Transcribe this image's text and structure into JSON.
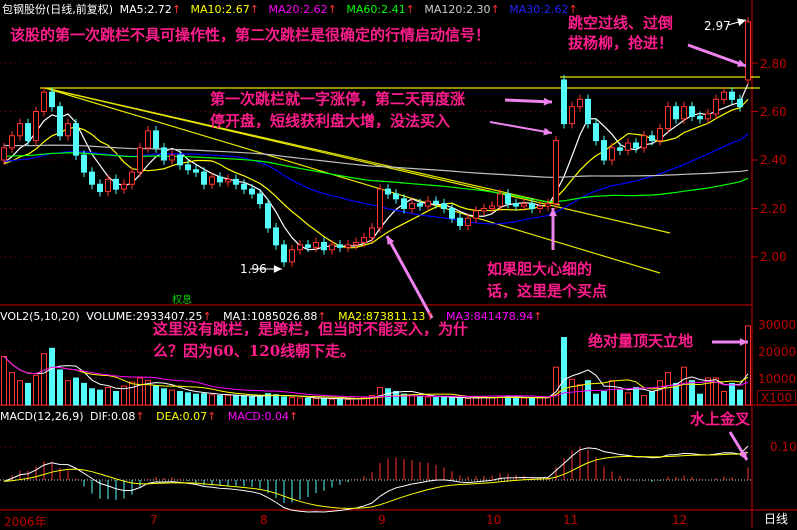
{
  "header": {
    "title": "包钢股份(日线,前复权)",
    "ma5": "MA5:2.72",
    "ma10": "MA10:2.67",
    "ma20": "MA20:2.62",
    "ma60": "MA60:2.41",
    "ma120": "MA120:2.30",
    "ma30": "MA30:2.62"
  },
  "volume_header": {
    "title": "VOL2(5,10,20)",
    "volume": "VOLUME:2933407.25",
    "ma1": "MA1:1085026.88",
    "ma2": "MA2:873811.13",
    "ma3": "MA3:841478.94"
  },
  "macd_header": {
    "title": "MACD(12,26,9)",
    "dif": "DIF:0.08",
    "dea": "DEA:0.07",
    "macd": "MACD:0.04"
  },
  "annotations": {
    "top": "该股的第一次跳栏不具可操作性，第二次跳栏是很确定的行情启动信号！",
    "first_gap_1": "第一次跳栏就一字涨停，第二天再度涨",
    "first_gap_2": "停开盘，短线获利盘大增，没法买入",
    "jump_1": "跳空过线、过倒",
    "jump_2": "拔杨柳，抢进！",
    "buy_1": "如果胆大心细的",
    "buy_2": "话，这里是个买点",
    "cross_1": "这里没有跳栏，是跨栏，但当时不能买入，为什",
    "cross_2": "么？因为60、120线朝下走。",
    "volume_note": "绝对量顶天立地",
    "macd_note": "水上金叉",
    "high_label": "2.97",
    "low_label": "1.96",
    "ex_rights": "权息"
  },
  "time_axis": {
    "labels": [
      "2006年",
      "7",
      "8",
      "9",
      "10",
      "11",
      "12"
    ],
    "period": "日线"
  },
  "colors": {
    "up": "#ff3232",
    "down": "#54fcfc",
    "ma5": "#ffffff",
    "ma10": "#ffff00",
    "ma20": "#ff00ff",
    "ma30": "#0000ff",
    "ma60": "#00ff00",
    "ma120": "#c0c0c0",
    "note": "#ff1c8c",
    "arrow": "#ee82ee",
    "axis": "#c00000"
  },
  "chart_data": {
    "type": "candlestick",
    "price_axis": {
      "ticks": [
        "2.80",
        "2.60",
        "2.40",
        "2.20",
        "2.00"
      ],
      "range": [
        1.9,
        3.0
      ]
    },
    "volume_axis": {
      "ticks": [
        "30000",
        "20000",
        "10000"
      ],
      "unit": "X100",
      "range": [
        0,
        32000
      ]
    },
    "macd_axis": {
      "ticks": [
        "0.10"
      ]
    },
    "open": [
      2.4,
      2.45,
      2.5,
      2.55,
      2.48,
      2.6,
      2.68,
      2.62,
      2.5,
      2.55,
      2.42,
      2.35,
      2.3,
      2.27,
      2.32,
      2.28,
      2.3,
      2.35,
      2.45,
      2.52,
      2.45,
      2.4,
      2.42,
      2.38,
      2.36,
      2.35,
      2.3,
      2.33,
      2.31,
      2.32,
      2.3,
      2.28,
      2.26,
      2.22,
      2.12,
      2.05,
      1.98,
      2.03,
      2.05,
      2.04,
      2.06,
      2.03,
      2.05,
      2.04,
      2.05,
      2.06,
      2.08,
      2.12,
      2.28,
      2.26,
      2.24,
      2.2,
      2.22,
      2.21,
      2.23,
      2.22,
      2.2,
      2.16,
      2.13,
      2.16,
      2.19,
      2.2,
      2.21,
      2.26,
      2.22,
      2.21,
      2.22,
      2.2,
      2.21,
      2.22,
      2.73,
      2.55,
      2.62,
      2.65,
      2.55,
      2.48,
      2.4,
      2.45,
      2.44,
      2.47,
      2.45,
      2.5,
      2.48,
      2.53,
      2.62,
      2.57,
      2.62,
      2.58,
      2.57,
      2.59,
      2.65,
      2.68,
      2.65,
      2.73
    ],
    "close": [
      2.45,
      2.5,
      2.55,
      2.48,
      2.6,
      2.68,
      2.62,
      2.5,
      2.55,
      2.42,
      2.35,
      2.3,
      2.27,
      2.32,
      2.28,
      2.3,
      2.35,
      2.45,
      2.52,
      2.45,
      2.4,
      2.42,
      2.38,
      2.36,
      2.35,
      2.3,
      2.33,
      2.31,
      2.32,
      2.3,
      2.28,
      2.26,
      2.22,
      2.12,
      2.05,
      1.98,
      2.03,
      2.05,
      2.04,
      2.06,
      2.03,
      2.05,
      2.04,
      2.05,
      2.06,
      2.08,
      2.12,
      2.28,
      2.26,
      2.24,
      2.2,
      2.22,
      2.21,
      2.23,
      2.22,
      2.2,
      2.16,
      2.13,
      2.16,
      2.19,
      2.2,
      2.21,
      2.26,
      2.22,
      2.21,
      2.22,
      2.2,
      2.21,
      2.22,
      2.48,
      2.55,
      2.62,
      2.65,
      2.55,
      2.48,
      2.4,
      2.45,
      2.44,
      2.47,
      2.45,
      2.5,
      2.48,
      2.53,
      2.62,
      2.57,
      2.62,
      2.58,
      2.57,
      2.59,
      2.65,
      2.68,
      2.65,
      2.62,
      2.97
    ],
    "volume": [
      18000,
      12000,
      9000,
      8000,
      11000,
      19000,
      21000,
      13000,
      9000,
      10000,
      8000,
      6000,
      5500,
      6500,
      5000,
      7000,
      8500,
      10000,
      9000,
      7000,
      6000,
      5500,
      5000,
      4500,
      4000,
      4200,
      3800,
      3500,
      3600,
      3300,
      3200,
      3000,
      3500,
      4200,
      3800,
      3000,
      2800,
      2600,
      2500,
      2400,
      2300,
      2200,
      2300,
      2100,
      2400,
      2600,
      3500,
      6500,
      6000,
      5000,
      4000,
      3500,
      3200,
      3000,
      2800,
      3000,
      2600,
      2500,
      2400,
      2600,
      3000,
      2800,
      3200,
      3000,
      2700,
      2600,
      2500,
      2600,
      2800,
      14000,
      25000,
      9500,
      7500,
      9000,
      4000,
      5000,
      9000,
      5500,
      4500,
      6500,
      3500,
      5000,
      9000,
      12000,
      8000,
      14000,
      9000,
      4000,
      10000,
      10000,
      5000,
      8000,
      5500,
      29300
    ]
  }
}
